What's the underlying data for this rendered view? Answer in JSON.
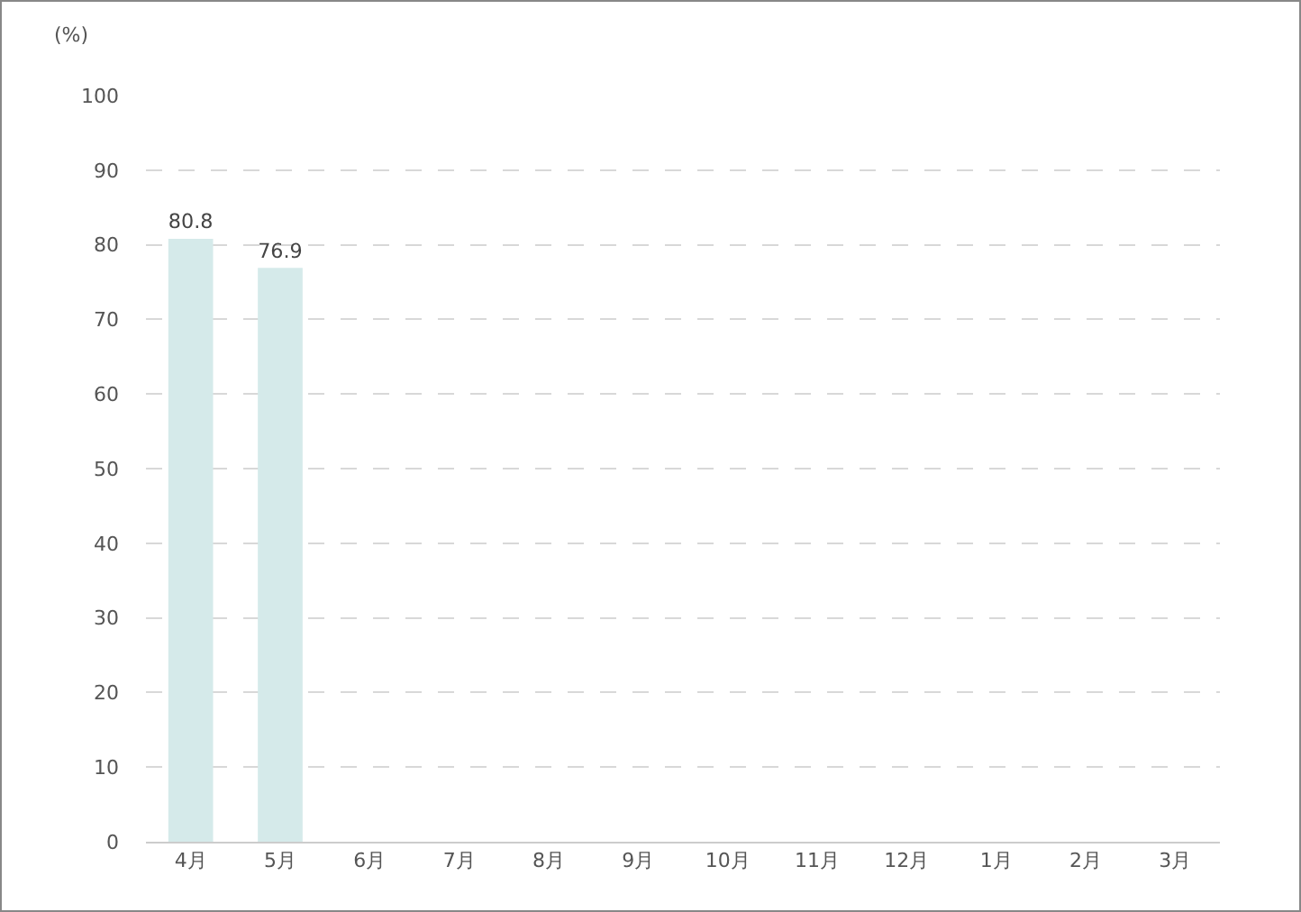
{
  "chart_data": {
    "type": "bar",
    "ylabel": "(%)",
    "categories": [
      "4月",
      "5月",
      "6月",
      "7月",
      "8月",
      "9月",
      "10月",
      "11月",
      "12月",
      "1月",
      "2月",
      "3月"
    ],
    "values": [
      80.8,
      76.9,
      null,
      null,
      null,
      null,
      null,
      null,
      null,
      null,
      null,
      null
    ],
    "color": "#d5eaea",
    "ylim": [
      0,
      100
    ],
    "yticks": [
      0,
      10,
      20,
      30,
      40,
      50,
      60,
      70,
      80,
      90,
      100
    ],
    "grid": "y",
    "line_style": "dashed",
    "data_labels": true,
    "legend": false
  }
}
